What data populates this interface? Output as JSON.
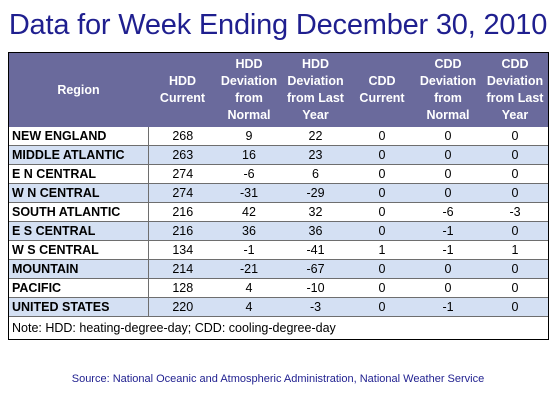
{
  "title": "Data for Week Ending December 30, 2010",
  "headers": {
    "region": "Region",
    "hdd_current": [
      "HDD",
      "Current"
    ],
    "hdd_dev_normal": [
      "HDD",
      "Deviation",
      "from",
      "Normal"
    ],
    "hdd_dev_last_year": [
      "HDD",
      "Deviation",
      "from Last",
      "Year"
    ],
    "cdd_current": [
      "CDD",
      "Current"
    ],
    "cdd_dev_normal": [
      "CDD",
      "Deviation",
      "from",
      "Normal"
    ],
    "cdd_dev_last_year": [
      "CDD",
      "Deviation",
      "from Last",
      "Year"
    ]
  },
  "rows": [
    {
      "region": "NEW ENGLAND",
      "hdd_current": "268",
      "hdd_dev_normal": "9",
      "hdd_dev_last_year": "22",
      "cdd_current": "0",
      "cdd_dev_normal": "0",
      "cdd_dev_last_year": "0"
    },
    {
      "region": "MIDDLE ATLANTIC",
      "hdd_current": "263",
      "hdd_dev_normal": "16",
      "hdd_dev_last_year": "23",
      "cdd_current": "0",
      "cdd_dev_normal": "0",
      "cdd_dev_last_year": "0"
    },
    {
      "region": "E N CENTRAL",
      "hdd_current": "274",
      "hdd_dev_normal": "-6",
      "hdd_dev_last_year": "6",
      "cdd_current": "0",
      "cdd_dev_normal": "0",
      "cdd_dev_last_year": "0"
    },
    {
      "region": "W N CENTRAL",
      "hdd_current": "274",
      "hdd_dev_normal": "-31",
      "hdd_dev_last_year": "-29",
      "cdd_current": "0",
      "cdd_dev_normal": "0",
      "cdd_dev_last_year": "0"
    },
    {
      "region": "SOUTH ATLANTIC",
      "hdd_current": "216",
      "hdd_dev_normal": "42",
      "hdd_dev_last_year": "32",
      "cdd_current": "0",
      "cdd_dev_normal": "-6",
      "cdd_dev_last_year": "-3"
    },
    {
      "region": "E S CENTRAL",
      "hdd_current": "216",
      "hdd_dev_normal": "36",
      "hdd_dev_last_year": "36",
      "cdd_current": "0",
      "cdd_dev_normal": "-1",
      "cdd_dev_last_year": "0"
    },
    {
      "region": "W S CENTRAL",
      "hdd_current": "134",
      "hdd_dev_normal": "-1",
      "hdd_dev_last_year": "-41",
      "cdd_current": "1",
      "cdd_dev_normal": "-1",
      "cdd_dev_last_year": "1"
    },
    {
      "region": "MOUNTAIN",
      "hdd_current": "214",
      "hdd_dev_normal": "-21",
      "hdd_dev_last_year": "-67",
      "cdd_current": "0",
      "cdd_dev_normal": "0",
      "cdd_dev_last_year": "0"
    },
    {
      "region": "PACIFIC",
      "hdd_current": "128",
      "hdd_dev_normal": "4",
      "hdd_dev_last_year": "-10",
      "cdd_current": "0",
      "cdd_dev_normal": "0",
      "cdd_dev_last_year": "0"
    },
    {
      "region": "UNITED STATES",
      "hdd_current": "220",
      "hdd_dev_normal": "4",
      "hdd_dev_last_year": "-3",
      "cdd_current": "0",
      "cdd_dev_normal": "-1",
      "cdd_dev_last_year": "0"
    }
  ],
  "note": "Note: HDD: heating-degree-day; CDD: cooling-degree-day",
  "source": "Source:  National Oceanic and Atmospheric Administration, National Weather Service",
  "colors": {
    "title": "#1f1f8f",
    "header_bg": "#6a6a9c",
    "stripe": "#d4e0f3"
  }
}
